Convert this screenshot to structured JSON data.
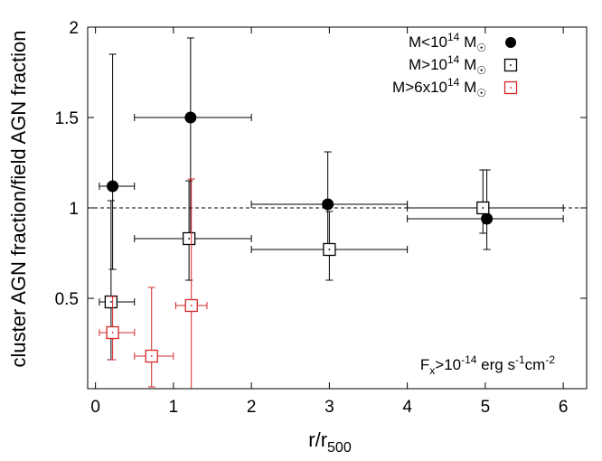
{
  "chart_data": {
    "type": "scatter",
    "title": "",
    "xlabel": "r/r",
    "xlabel_sub": "500",
    "ylabel": "cluster AGN fraction/field AGN fraction",
    "xlim": [
      -0.1,
      6.3
    ],
    "ylim": [
      0.0,
      2.0
    ],
    "x_ticks": [
      "0",
      "1",
      "2",
      "3",
      "4",
      "5",
      "6"
    ],
    "y_ticks": [
      "0.5",
      "1",
      "1.5",
      "2"
    ],
    "x_tick_values": [
      0,
      1,
      2,
      3,
      4,
      5,
      6
    ],
    "y_tick_values": [
      0.5,
      1.0,
      1.5,
      2.0
    ],
    "grid": false,
    "legend_position": "top-right",
    "reference_line": {
      "y": 1.0,
      "style": "dashed"
    },
    "annotation": {
      "parts": [
        {
          "t": "F",
          "s": "base"
        },
        {
          "t": "x",
          "s": "sub"
        },
        {
          "t": ">10",
          "s": "base"
        },
        {
          "t": "-14",
          "s": "sup"
        },
        {
          "t": " erg s",
          "s": "base"
        },
        {
          "t": "-1",
          "s": "sup"
        },
        {
          "t": "cm",
          "s": "base"
        },
        {
          "t": "-2",
          "s": "sup"
        }
      ]
    },
    "series": [
      {
        "name": "M<10^14 M☉",
        "legend_parts": [
          {
            "t": "M<10",
            "s": "base"
          },
          {
            "t": "14",
            "s": "sup"
          },
          {
            "t": " M",
            "s": "base"
          },
          {
            "t": "☉",
            "s": "sub"
          }
        ],
        "marker": "filled-circle",
        "color": "#000000",
        "points": [
          {
            "x": 0.22,
            "y": 1.12,
            "xerr": [
              0.17,
              0.28
            ],
            "yerr": [
              0.46,
              0.73
            ]
          },
          {
            "x": 1.22,
            "y": 1.5,
            "xerr": [
              0.72,
              0.78
            ],
            "yerr": [
              0.66,
              0.44
            ]
          },
          {
            "x": 2.98,
            "y": 1.02,
            "xerr": [
              0.98,
              1.02
            ],
            "yerr": [
              0.27,
              0.29
            ]
          },
          {
            "x": 5.02,
            "y": 0.94,
            "xerr": [
              1.02,
              0.98
            ],
            "yerr": [
              0.17,
              0.27
            ]
          }
        ]
      },
      {
        "name": "M>10^14 M☉",
        "legend_parts": [
          {
            "t": "M>10",
            "s": "base"
          },
          {
            "t": "14",
            "s": "sup"
          },
          {
            "t": " M",
            "s": "base"
          },
          {
            "t": "☉",
            "s": "sub"
          }
        ],
        "marker": "open-square",
        "color": "#000000",
        "points": [
          {
            "x": 0.2,
            "y": 0.48,
            "xerr": [
              0.15,
              0.3
            ],
            "yerr": [
              0.32,
              0.56
            ]
          },
          {
            "x": 1.2,
            "y": 0.83,
            "xerr": [
              0.7,
              0.8
            ],
            "yerr": [
              0.23,
              0.32
            ]
          },
          {
            "x": 3.0,
            "y": 0.77,
            "xerr": [
              1.0,
              1.0
            ],
            "yerr": [
              0.17,
              0.21
            ]
          },
          {
            "x": 4.97,
            "y": 1.0,
            "xerr": [
              0.97,
              1.03
            ],
            "yerr": [
              0.14,
              0.21
            ]
          }
        ]
      },
      {
        "name": "M>6x10^14 M☉",
        "legend_parts": [
          {
            "t": "M>6x10",
            "s": "base"
          },
          {
            "t": "14",
            "s": "sup"
          },
          {
            "t": " M",
            "s": "base"
          },
          {
            "t": "☉",
            "s": "sub"
          }
        ],
        "marker": "open-square",
        "color": "#d62728",
        "points": [
          {
            "x": 0.22,
            "y": 0.31,
            "xerr": [
              0.17,
              0.28
            ],
            "yerr": [
              0.15,
              0.2
            ]
          },
          {
            "x": 0.72,
            "y": 0.18,
            "xerr": [
              0.22,
              0.28
            ],
            "yerr": [
              0.17,
              0.38
            ]
          },
          {
            "x": 1.23,
            "y": 0.46,
            "xerr": [
              0.2,
              0.2
            ],
            "yerr": [
              0.46,
              0.7
            ]
          }
        ]
      }
    ]
  }
}
